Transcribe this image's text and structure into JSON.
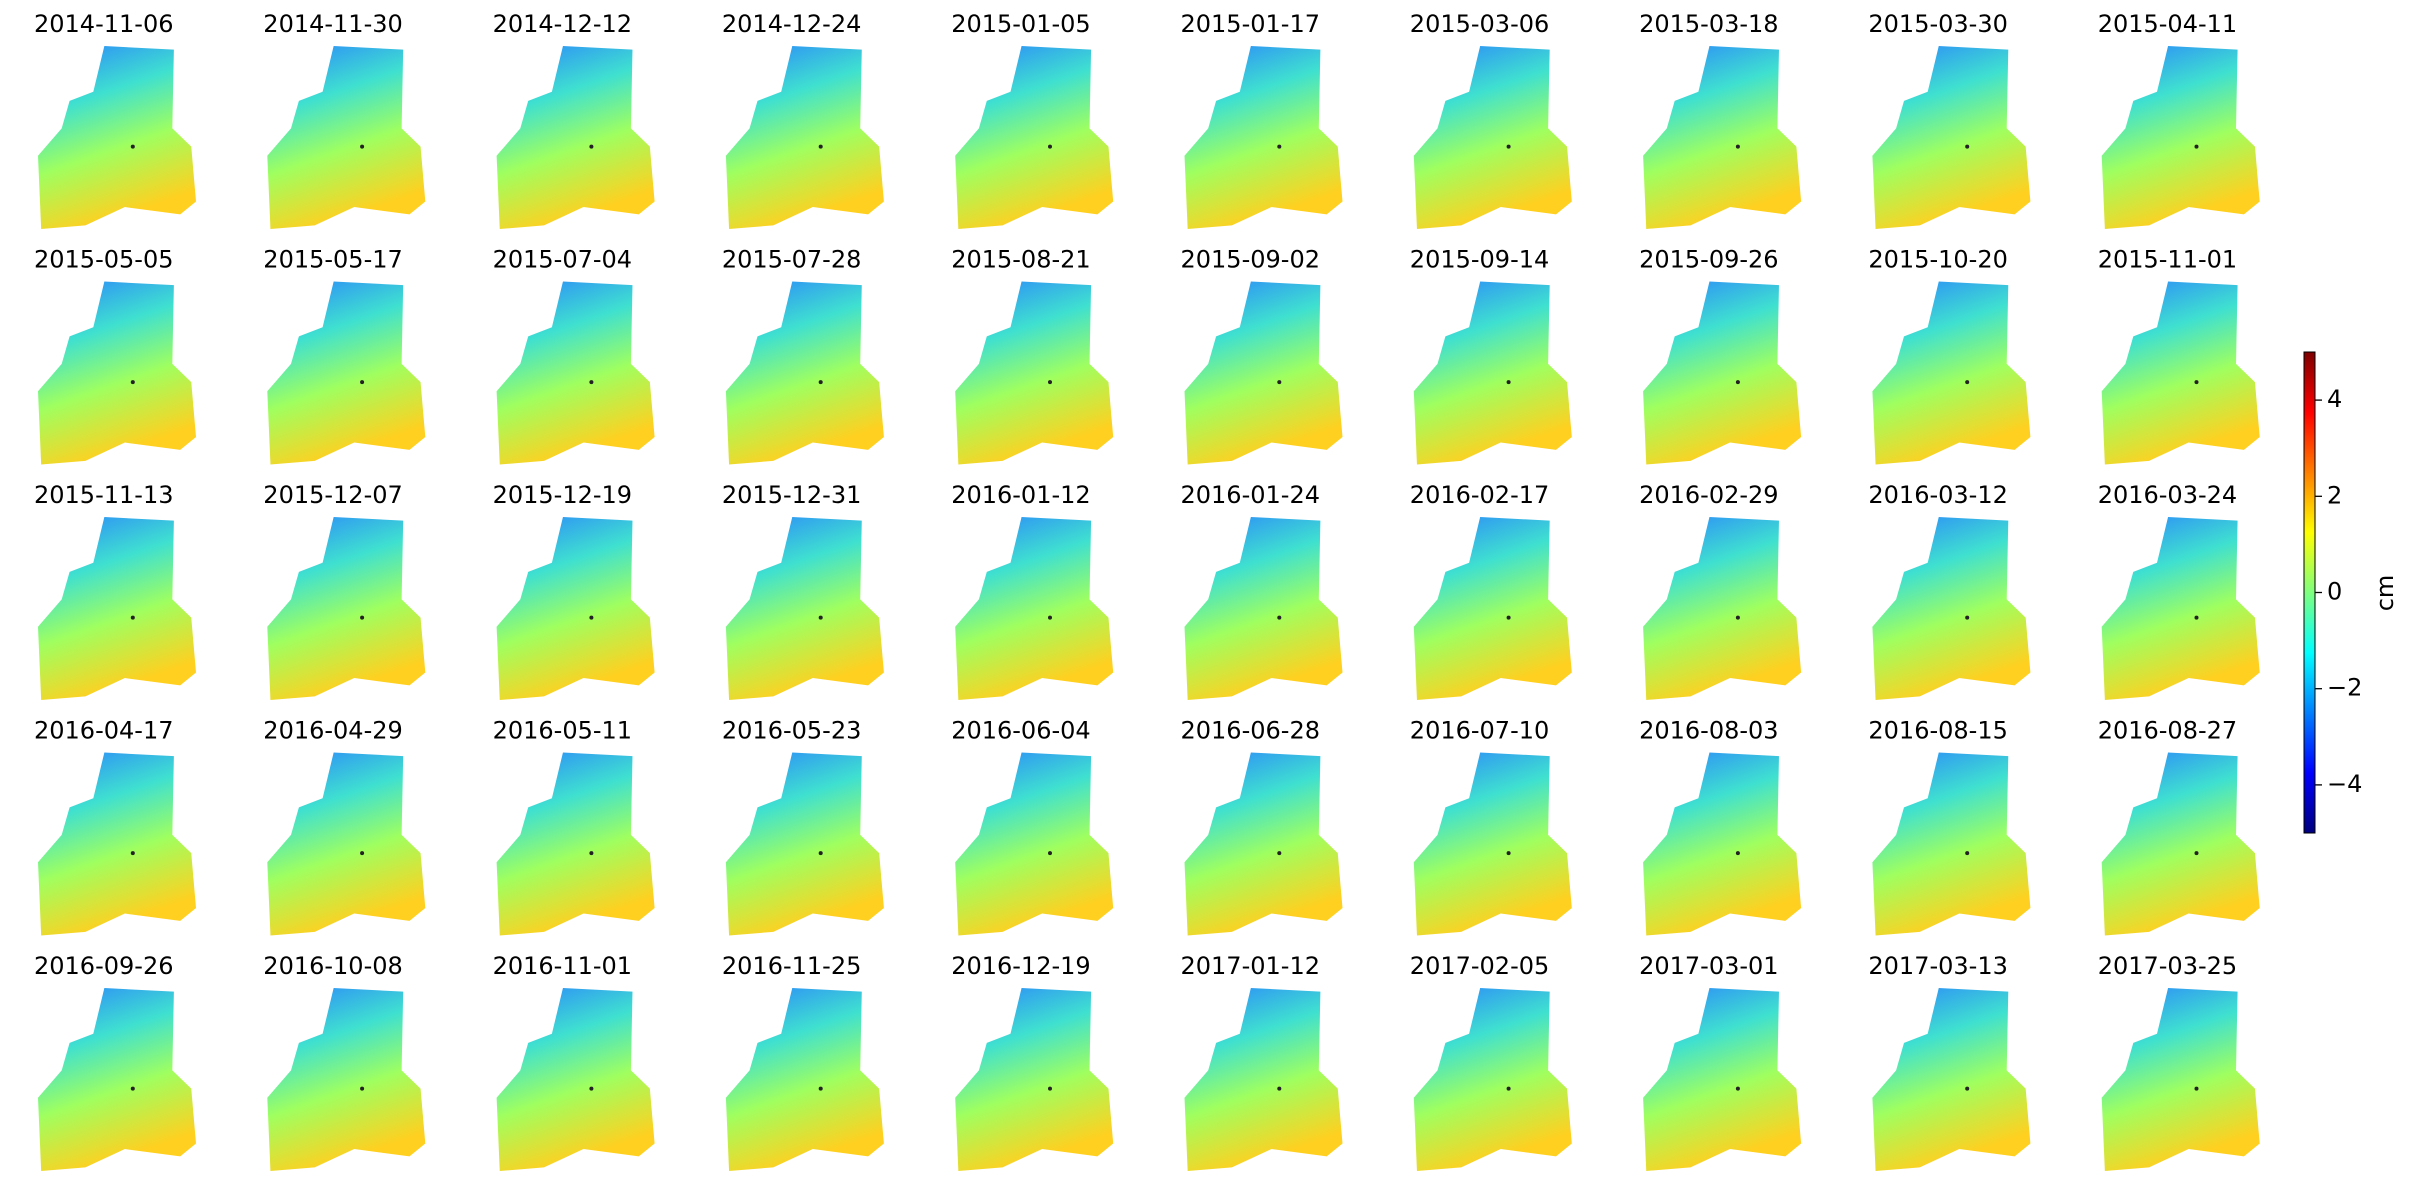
{
  "chart_data": {
    "type": "raster",
    "panels": [
      "2014-11-06",
      "2014-11-30",
      "2014-12-12",
      "2014-12-24",
      "2015-01-05",
      "2015-01-17",
      "2015-03-06",
      "2015-03-18",
      "2015-03-30",
      "2015-04-11",
      "2015-05-05",
      "2015-05-17",
      "2015-07-04",
      "2015-07-28",
      "2015-08-21",
      "2015-09-02",
      "2015-09-14",
      "2015-09-26",
      "2015-10-20",
      "2015-11-01",
      "2015-11-13",
      "2015-12-07",
      "2015-12-19",
      "2015-12-31",
      "2016-01-12",
      "2016-01-24",
      "2016-02-17",
      "2016-02-29",
      "2016-03-12",
      "2016-03-24",
      "2016-04-17",
      "2016-04-29",
      "2016-05-11",
      "2016-05-23",
      "2016-06-04",
      "2016-06-28",
      "2016-07-10",
      "2016-08-03",
      "2016-08-15",
      "2016-08-27",
      "2016-09-26",
      "2016-10-08",
      "2016-11-01",
      "2016-11-25",
      "2016-12-19",
      "2017-01-12",
      "2017-02-05",
      "2017-03-01",
      "2017-03-13",
      "2017-03-25"
    ],
    "colorbar": {
      "label": "cm",
      "clim": [
        -5,
        5
      ],
      "ticks": [
        {
          "value": -4,
          "label": "−4"
        },
        {
          "value": -2,
          "label": "−2"
        },
        0,
        2,
        4
      ],
      "colormap": [
        "#00007f",
        "#0000ff",
        "#007fff",
        "#00ffff",
        "#7fff7f",
        "#ffff00",
        "#ff7f00",
        "#ff0000",
        "#7f0000"
      ]
    }
  }
}
